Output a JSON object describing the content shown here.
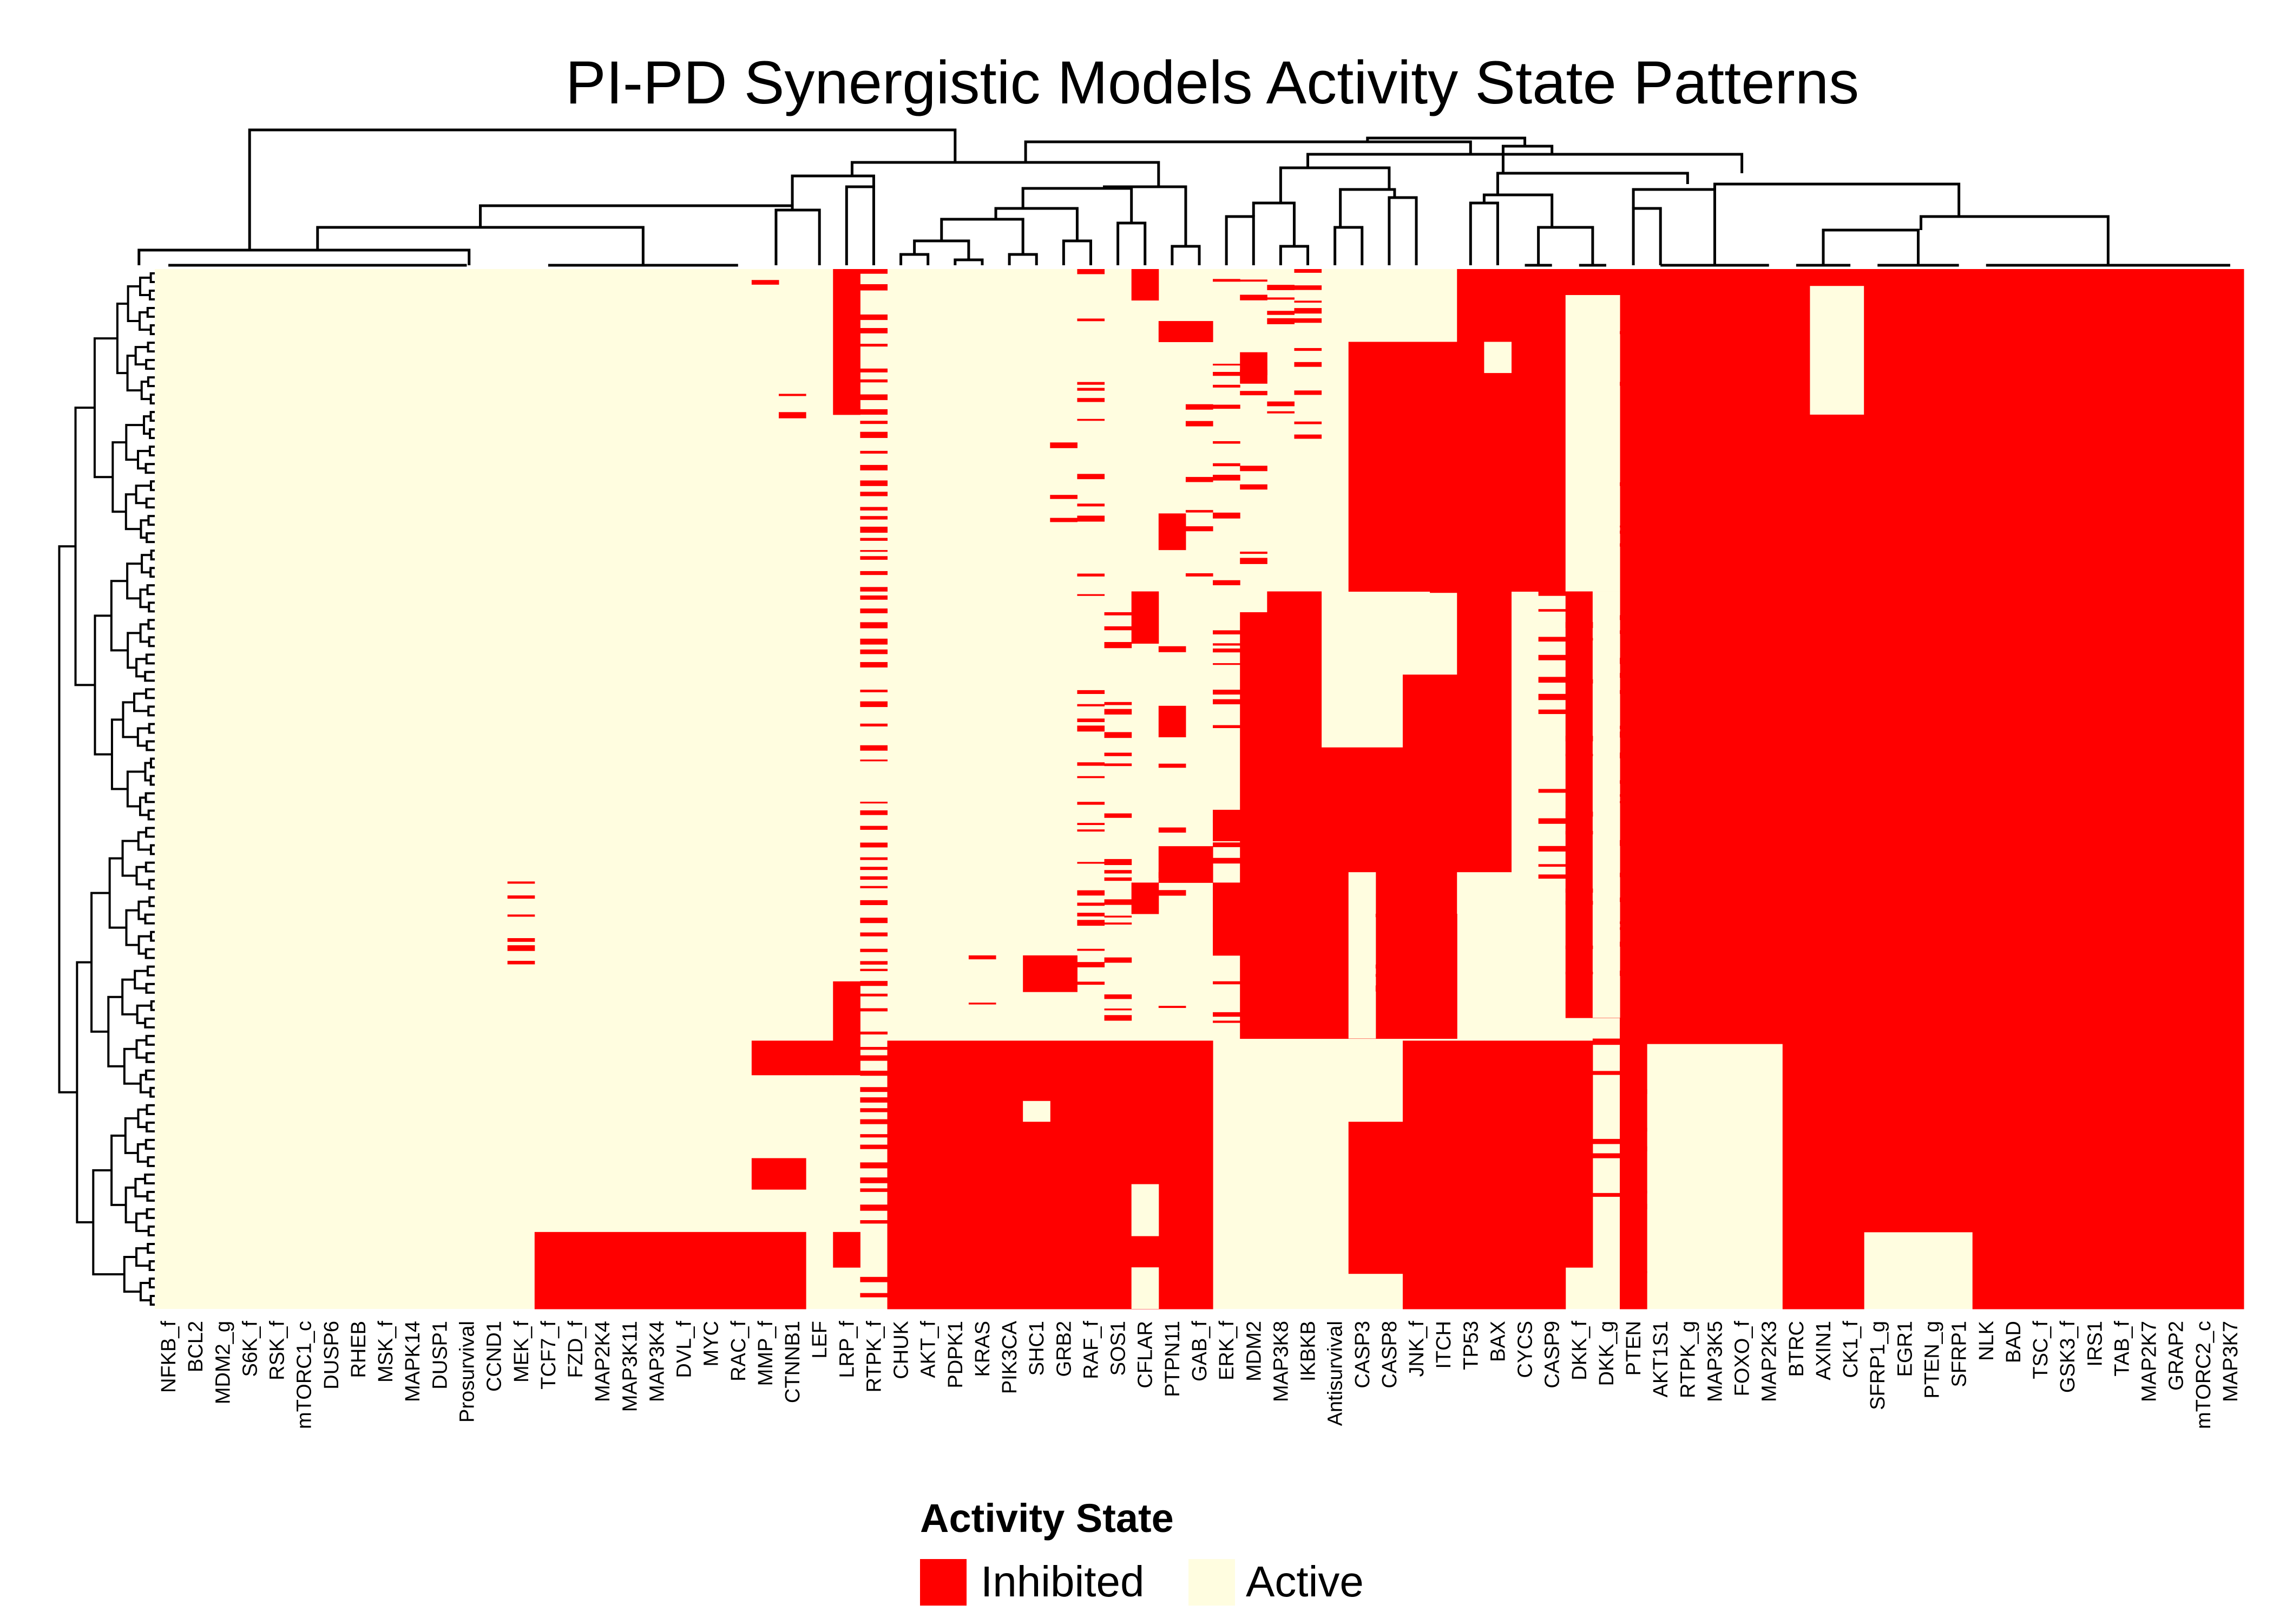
{
  "title": "PI-PD Synergistic Models Activity State Patterns",
  "chart_data": {
    "type": "heatmap",
    "title": "PI-PD Synergistic Models Activity State Patterns",
    "xlabel": "",
    "ylabel": "",
    "columns": [
      "NFKB_f",
      "BCL2",
      "MDM2_g",
      "S6K_f",
      "RSK_f",
      "mTORC1_c",
      "DUSP6",
      "RHEB",
      "MSK_f",
      "MAPK14",
      "DUSP1",
      "Prosurvival",
      "CCND1",
      "MEK_f",
      "TCF7_f",
      "FZD_f",
      "MAP2K4",
      "MAP3K11",
      "MAP3K4",
      "DVL_f",
      "MYC",
      "RAC_f",
      "MMP_f",
      "CTNNB1",
      "LEF",
      "LRP_f",
      "RTPK_f",
      "CHUK",
      "AKT_f",
      "PDPK1",
      "KRAS",
      "PIK3CA",
      "SHC1",
      "GRB2",
      "RAF_f",
      "SOS1",
      "CFLAR",
      "PTPN11",
      "GAB_f",
      "ERK_f",
      "MDM2",
      "MAP3K8",
      "IKBKB",
      "Antisurvival",
      "CASP3",
      "CASP8",
      "JNK_f",
      "ITCH",
      "TP53",
      "BAX",
      "CYCS",
      "CASP9",
      "DKK_f",
      "DKK_g",
      "PTEN",
      "AKT1S1",
      "RTPK_g",
      "MAP3K5",
      "FOXO_f",
      "MAP2K3",
      "BTRC",
      "AXIN1",
      "CK1_f",
      "SFRP1_g",
      "EGR1",
      "PTEN_g",
      "SFRP1",
      "NLK",
      "BAD",
      "TSC_f",
      "GSK3_f",
      "IRS1",
      "TAB_f",
      "MAP2K7",
      "GRAP2",
      "mTORC2_c",
      "MAP3K7"
    ],
    "values_legend": {
      "0": "Inhibited",
      "1": "Active"
    },
    "row_blocks": [
      {
        "rows": "upper block (~75% of models)",
        "inhibited": [
          "PTEN",
          "AKT1S1",
          "RTPK_g",
          "MAP3K5",
          "FOXO_f",
          "MAP2K3",
          "BTRC",
          "SFRP1_g",
          "EGR1",
          "PTEN_g",
          "SFRP1",
          "NLK",
          "BAD",
          "TSC_f",
          "GSK3_f",
          "IRS1",
          "TAB_f",
          "MAP2K7",
          "GRAP2",
          "mTORC2_c",
          "MAP3K7"
        ],
        "active": [
          "NFKB_f",
          "BCL2",
          "MDM2_g",
          "S6K_f",
          "RSK_f",
          "mTORC1_c",
          "DUSP6",
          "RHEB",
          "MSK_f",
          "MAPK14",
          "DUSP1",
          "Prosurvival",
          "CCND1",
          "TCF7_f",
          "FZD_f",
          "MAP2K4",
          "MAP3K11",
          "MAP3K4",
          "DVL_f",
          "MYC",
          "RAC_f",
          "CHUK",
          "AKT_f",
          "PDPK1",
          "KRAS",
          "PIK3CA"
        ]
      },
      {
        "rows": "lower block (~25% of models)",
        "inhibited": [
          "CHUK",
          "AKT_f",
          "PDPK1",
          "KRAS",
          "PIK3CA",
          "SHC1",
          "GRB2",
          "RAF_f",
          "SOS1",
          "CFLAR",
          "PTPN11",
          "GAB_f",
          "BTRC",
          "AXIN1",
          "CK1_f",
          "NLK",
          "BAD",
          "TSC_f",
          "GSK3_f",
          "IRS1",
          "TAB_f",
          "MAP2K7",
          "GRAP2",
          "mTORC2_c",
          "MAP3K7"
        ],
        "active": [
          "NFKB_f",
          "BCL2",
          "MDM2_g",
          "S6K_f",
          "RSK_f",
          "mTORC1_c",
          "DUSP6",
          "RHEB",
          "MSK_f",
          "MAPK14",
          "DUSP1",
          "Prosurvival",
          "CCND1",
          "ERK_f",
          "MDM2",
          "MAP3K8",
          "IKBKB",
          "AKT1S1",
          "RTPK_g",
          "MAP3K5",
          "FOXO_f",
          "MAP2K3"
        ]
      }
    ],
    "grid": false,
    "legend_position": "bottom"
  },
  "legend": {
    "title": "Activity State",
    "items": [
      {
        "label": "Inhibited",
        "color": "#ff0000"
      },
      {
        "label": "Active",
        "color": "#fffde0"
      }
    ]
  },
  "colors": {
    "inhibited": "#ff0000",
    "active": "#fffde0",
    "tree": "#000000"
  }
}
